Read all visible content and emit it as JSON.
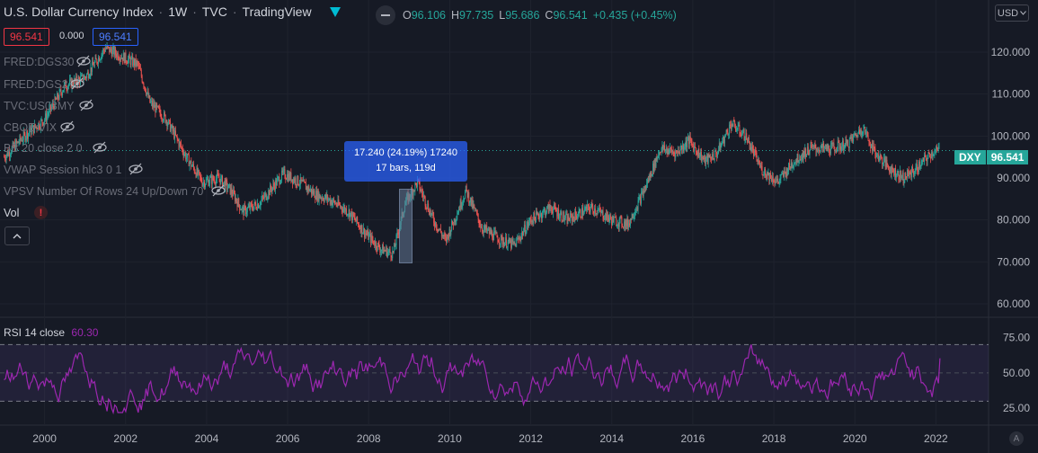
{
  "legend": {
    "title": "U.S. Dollar Currency Index",
    "interval": "1W",
    "exchange": "TVC",
    "source": "TradingView",
    "ohlc": [
      {
        "k": "O",
        "v": "96.106"
      },
      {
        "k": "H",
        "v": "97.735"
      },
      {
        "k": "L",
        "v": "95.686"
      },
      {
        "k": "C",
        "v": "96.541"
      }
    ],
    "change": "+0.435 (+0.45%)",
    "sell_price": "96.541",
    "spread": "0.000",
    "buy_price": "96.541"
  },
  "indicators": [
    "FRED:DGS30",
    "FRED:DGS2",
    "TVC:US03MY",
    "CBOE:VIX",
    "BB 20 close 2 0",
    "VWAP Session hlc3 0 1",
    "VPSV Number Of Rows 24 Up/Down 70",
    "Vol"
  ],
  "currency_selector": "USD",
  "measure_tooltip": {
    "line1": "17.240 (24.19%) 17240",
    "line2": "17 bars, 119d"
  },
  "price_label": {
    "symbol": "DXY",
    "price": "96.541"
  },
  "rsi_legend": {
    "name": "RSI 14 close",
    "value": "60.30"
  },
  "auto_scale_label": "A",
  "colors": {
    "up": "#26a69a",
    "down": "#ef5350",
    "rsi": "#9c27b0",
    "background": "#161a25",
    "accent": "#2962ff"
  },
  "chart_data": {
    "type": "candlestick",
    "x_ticks": [
      "2000",
      "2002",
      "2004",
      "2006",
      "2008",
      "2010",
      "2012",
      "2014",
      "2016",
      "2018",
      "2020",
      "2022"
    ],
    "y_ticks": [
      "120.000",
      "110.000",
      "100.000",
      "90.000",
      "80.000",
      "70.000",
      "60.000"
    ],
    "ylim": [
      57,
      126
    ],
    "xlim": [
      1998.9,
      2023.3
    ],
    "last_price": 96.541,
    "series": [
      {
        "name": "DXY",
        "points": [
          [
            1999.0,
            95
          ],
          [
            1999.5,
            100
          ],
          [
            2000.0,
            104
          ],
          [
            2000.5,
            112
          ],
          [
            2001.0,
            114
          ],
          [
            2001.5,
            121
          ],
          [
            2001.9,
            119
          ],
          [
            2002.3,
            117
          ],
          [
            2002.6,
            108
          ],
          [
            2003.0,
            104
          ],
          [
            2003.5,
            95
          ],
          [
            2003.9,
            89
          ],
          [
            2004.3,
            90
          ],
          [
            2004.6,
            87
          ],
          [
            2004.9,
            82
          ],
          [
            2005.3,
            84
          ],
          [
            2005.9,
            91
          ],
          [
            2006.3,
            89
          ],
          [
            2006.7,
            86
          ],
          [
            2007.0,
            85
          ],
          [
            2007.5,
            82
          ],
          [
            2007.9,
            77
          ],
          [
            2008.3,
            73
          ],
          [
            2008.6,
            72
          ],
          [
            2008.9,
            84
          ],
          [
            2009.2,
            89
          ],
          [
            2009.6,
            80
          ],
          [
            2009.9,
            75
          ],
          [
            2010.4,
            87
          ],
          [
            2010.8,
            78
          ],
          [
            2011.3,
            75
          ],
          [
            2011.6,
            74
          ],
          [
            2012.0,
            80
          ],
          [
            2012.5,
            83
          ],
          [
            2012.9,
            80
          ],
          [
            2013.5,
            83
          ],
          [
            2014.0,
            80
          ],
          [
            2014.4,
            79
          ],
          [
            2014.8,
            87
          ],
          [
            2015.2,
            97
          ],
          [
            2015.6,
            96
          ],
          [
            2015.9,
            99
          ],
          [
            2016.3,
            94
          ],
          [
            2016.6,
            96
          ],
          [
            2016.95,
            103
          ],
          [
            2017.3,
            100
          ],
          [
            2017.7,
            92
          ],
          [
            2018.1,
            89
          ],
          [
            2018.5,
            94
          ],
          [
            2018.9,
            97
          ],
          [
            2019.4,
            97
          ],
          [
            2019.8,
            98
          ],
          [
            2020.2,
            102
          ],
          [
            2020.5,
            96
          ],
          [
            2020.9,
            92
          ],
          [
            2021.2,
            90
          ],
          [
            2021.5,
            92
          ],
          [
            2021.9,
            96
          ],
          [
            2022.1,
            96.541
          ]
        ]
      }
    ],
    "rsi": {
      "name": "RSI 14 close",
      "levels": [
        70,
        50,
        30
      ],
      "y_ticks": [
        "75.00",
        "50.00",
        "25.00"
      ],
      "ylim": [
        15,
        88
      ],
      "last": 60.3
    }
  }
}
